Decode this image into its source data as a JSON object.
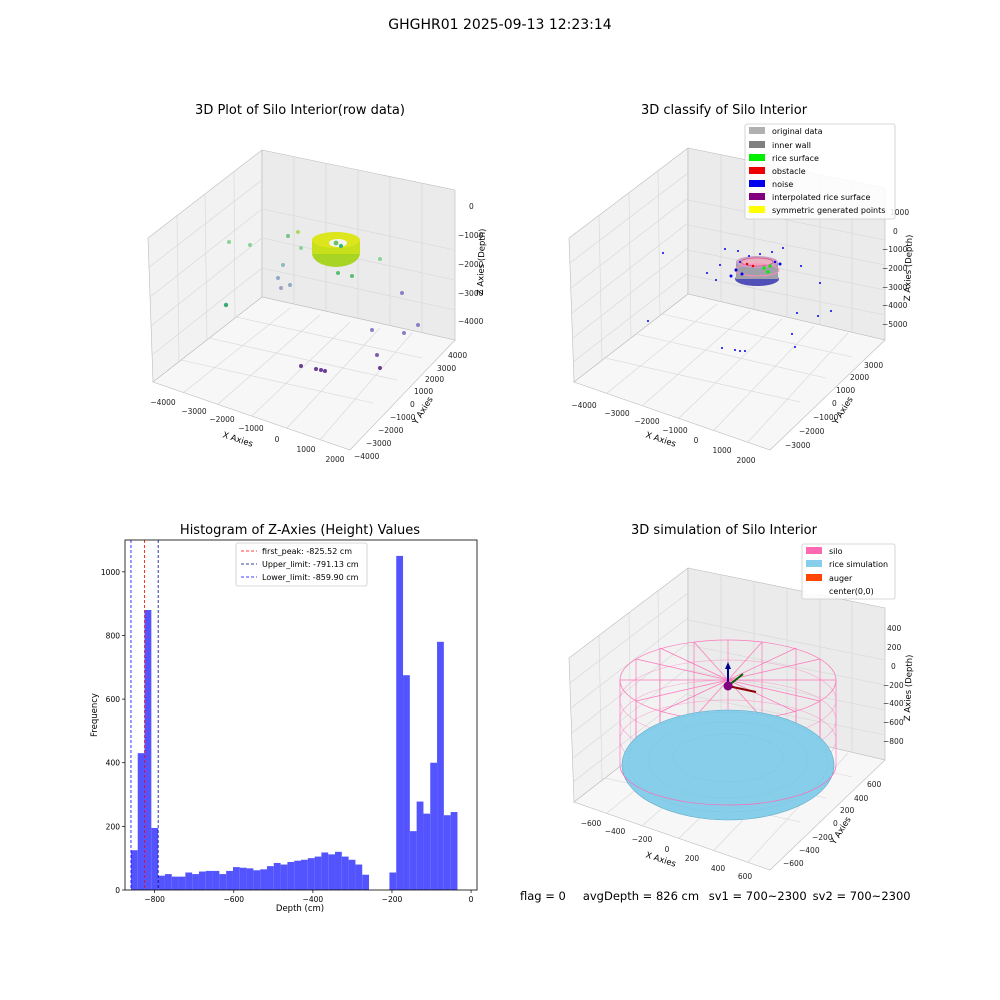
{
  "figure": {
    "suptitle": "GHGHR01 2025-09-13 12:23:14"
  },
  "panels": {
    "raw": {
      "title": "3D Plot of Silo Interior(row data)",
      "xlabel": "X Axies",
      "ylabel": "Y Axies",
      "zlabel": "Z Axies (Depth)",
      "xticks": [
        "−4000",
        "−3000",
        "−2000",
        "−1000",
        "0",
        "1000",
        "2000"
      ],
      "yticks": [
        "4000",
        "3000",
        "2000",
        "1000",
        "0",
        "−1000",
        "−2000",
        "−3000",
        "−4000"
      ],
      "zticks": [
        "0",
        "−1000",
        "−2000",
        "−3000",
        "−4000"
      ]
    },
    "classify": {
      "title": "3D classify of Silo Interior",
      "xlabel": "X Axies",
      "ylabel": "Y Axies",
      "zlabel": "Z Axies (Depth)",
      "xticks": [
        "−4000",
        "−3000",
        "−2000",
        "−1000",
        "0",
        "1000",
        "2000"
      ],
      "yticks": [
        "3000",
        "2000",
        "1000",
        "0",
        "−1000",
        "−2000",
        "−3000"
      ],
      "zticks": [
        "1000",
        "0",
        "−1000",
        "−2000",
        "−3000",
        "−4000",
        "−5000"
      ],
      "legend": [
        {
          "label": "original data",
          "color": "#b0b0b0"
        },
        {
          "label": "inner wall",
          "color": "#808080"
        },
        {
          "label": "rice surface",
          "color": "#00ee00"
        },
        {
          "label": "obstacle",
          "color": "#ee0000"
        },
        {
          "label": "noise",
          "color": "#0000ee"
        },
        {
          "label": "interpolated rice surface",
          "color": "#800080"
        },
        {
          "label": "symmetric generated points",
          "color": "#ffff00"
        }
      ]
    },
    "simulation": {
      "title": "3D simulation of Silo Interior",
      "xlabel": "X Axies",
      "ylabel": "Y Axies",
      "zlabel": "Z Axies (Depth)",
      "xticks": [
        "−600",
        "−400",
        "−200",
        "0",
        "200",
        "400",
        "600"
      ],
      "yticks": [
        "600",
        "400",
        "200",
        "0",
        "−200",
        "−400",
        "−600"
      ],
      "zticks": [
        "400",
        "200",
        "0",
        "−200",
        "−400",
        "−600",
        "−800"
      ],
      "legend": [
        {
          "label": "silo",
          "color": "#ff69b4"
        },
        {
          "label": "rice simulation",
          "color": "#87ceeb"
        },
        {
          "label": "auger",
          "color": "#ff4500"
        },
        {
          "label": "center(0,0)",
          "color": "#ffffff"
        }
      ]
    }
  },
  "chart_data": [
    {
      "type": "histogram",
      "title": "Histogram of Z-Axies (Height) Values",
      "xlabel": "Depth (cm)",
      "ylabel": "Frequency",
      "xlim": [
        -875,
        15
      ],
      "ylim": [
        0,
        1100
      ],
      "xticks": [
        -800,
        -600,
        -400,
        -200,
        0
      ],
      "xtick_labels": [
        "−800",
        "−600",
        "−400",
        "−200",
        "0"
      ],
      "yticks": [
        0,
        200,
        400,
        600,
        800,
        1000
      ],
      "bar_color": "#4b4bff",
      "bin_start": -860,
      "bin_width": 17.2,
      "counts": [
        125,
        430,
        880,
        195,
        45,
        50,
        42,
        42,
        55,
        50,
        58,
        60,
        60,
        50,
        60,
        72,
        70,
        68,
        62,
        65,
        75,
        85,
        80,
        88,
        92,
        95,
        100,
        105,
        118,
        112,
        120,
        105,
        95,
        80,
        48,
        0,
        0,
        0,
        55,
        1050,
        675,
        185,
        278,
        240,
        400,
        780,
        235,
        245
      ],
      "vlines": [
        {
          "label": "first_peak: -825.52 cm",
          "x": -825.52,
          "color": "#ff0000"
        },
        {
          "label": "Upper_limit: -791.13 cm",
          "x": -791.13,
          "color": "#00008b"
        },
        {
          "label": "Lower_limit: -859.90 cm",
          "x": -859.9,
          "color": "#0000ff"
        }
      ],
      "legend_position": "upper center"
    }
  ],
  "footer": {
    "flag": "flag = 0",
    "avg": "avgDepth = 826 cm",
    "sv1": "sv1 = 700~2300",
    "sv2": "sv2 = 700~2300"
  }
}
